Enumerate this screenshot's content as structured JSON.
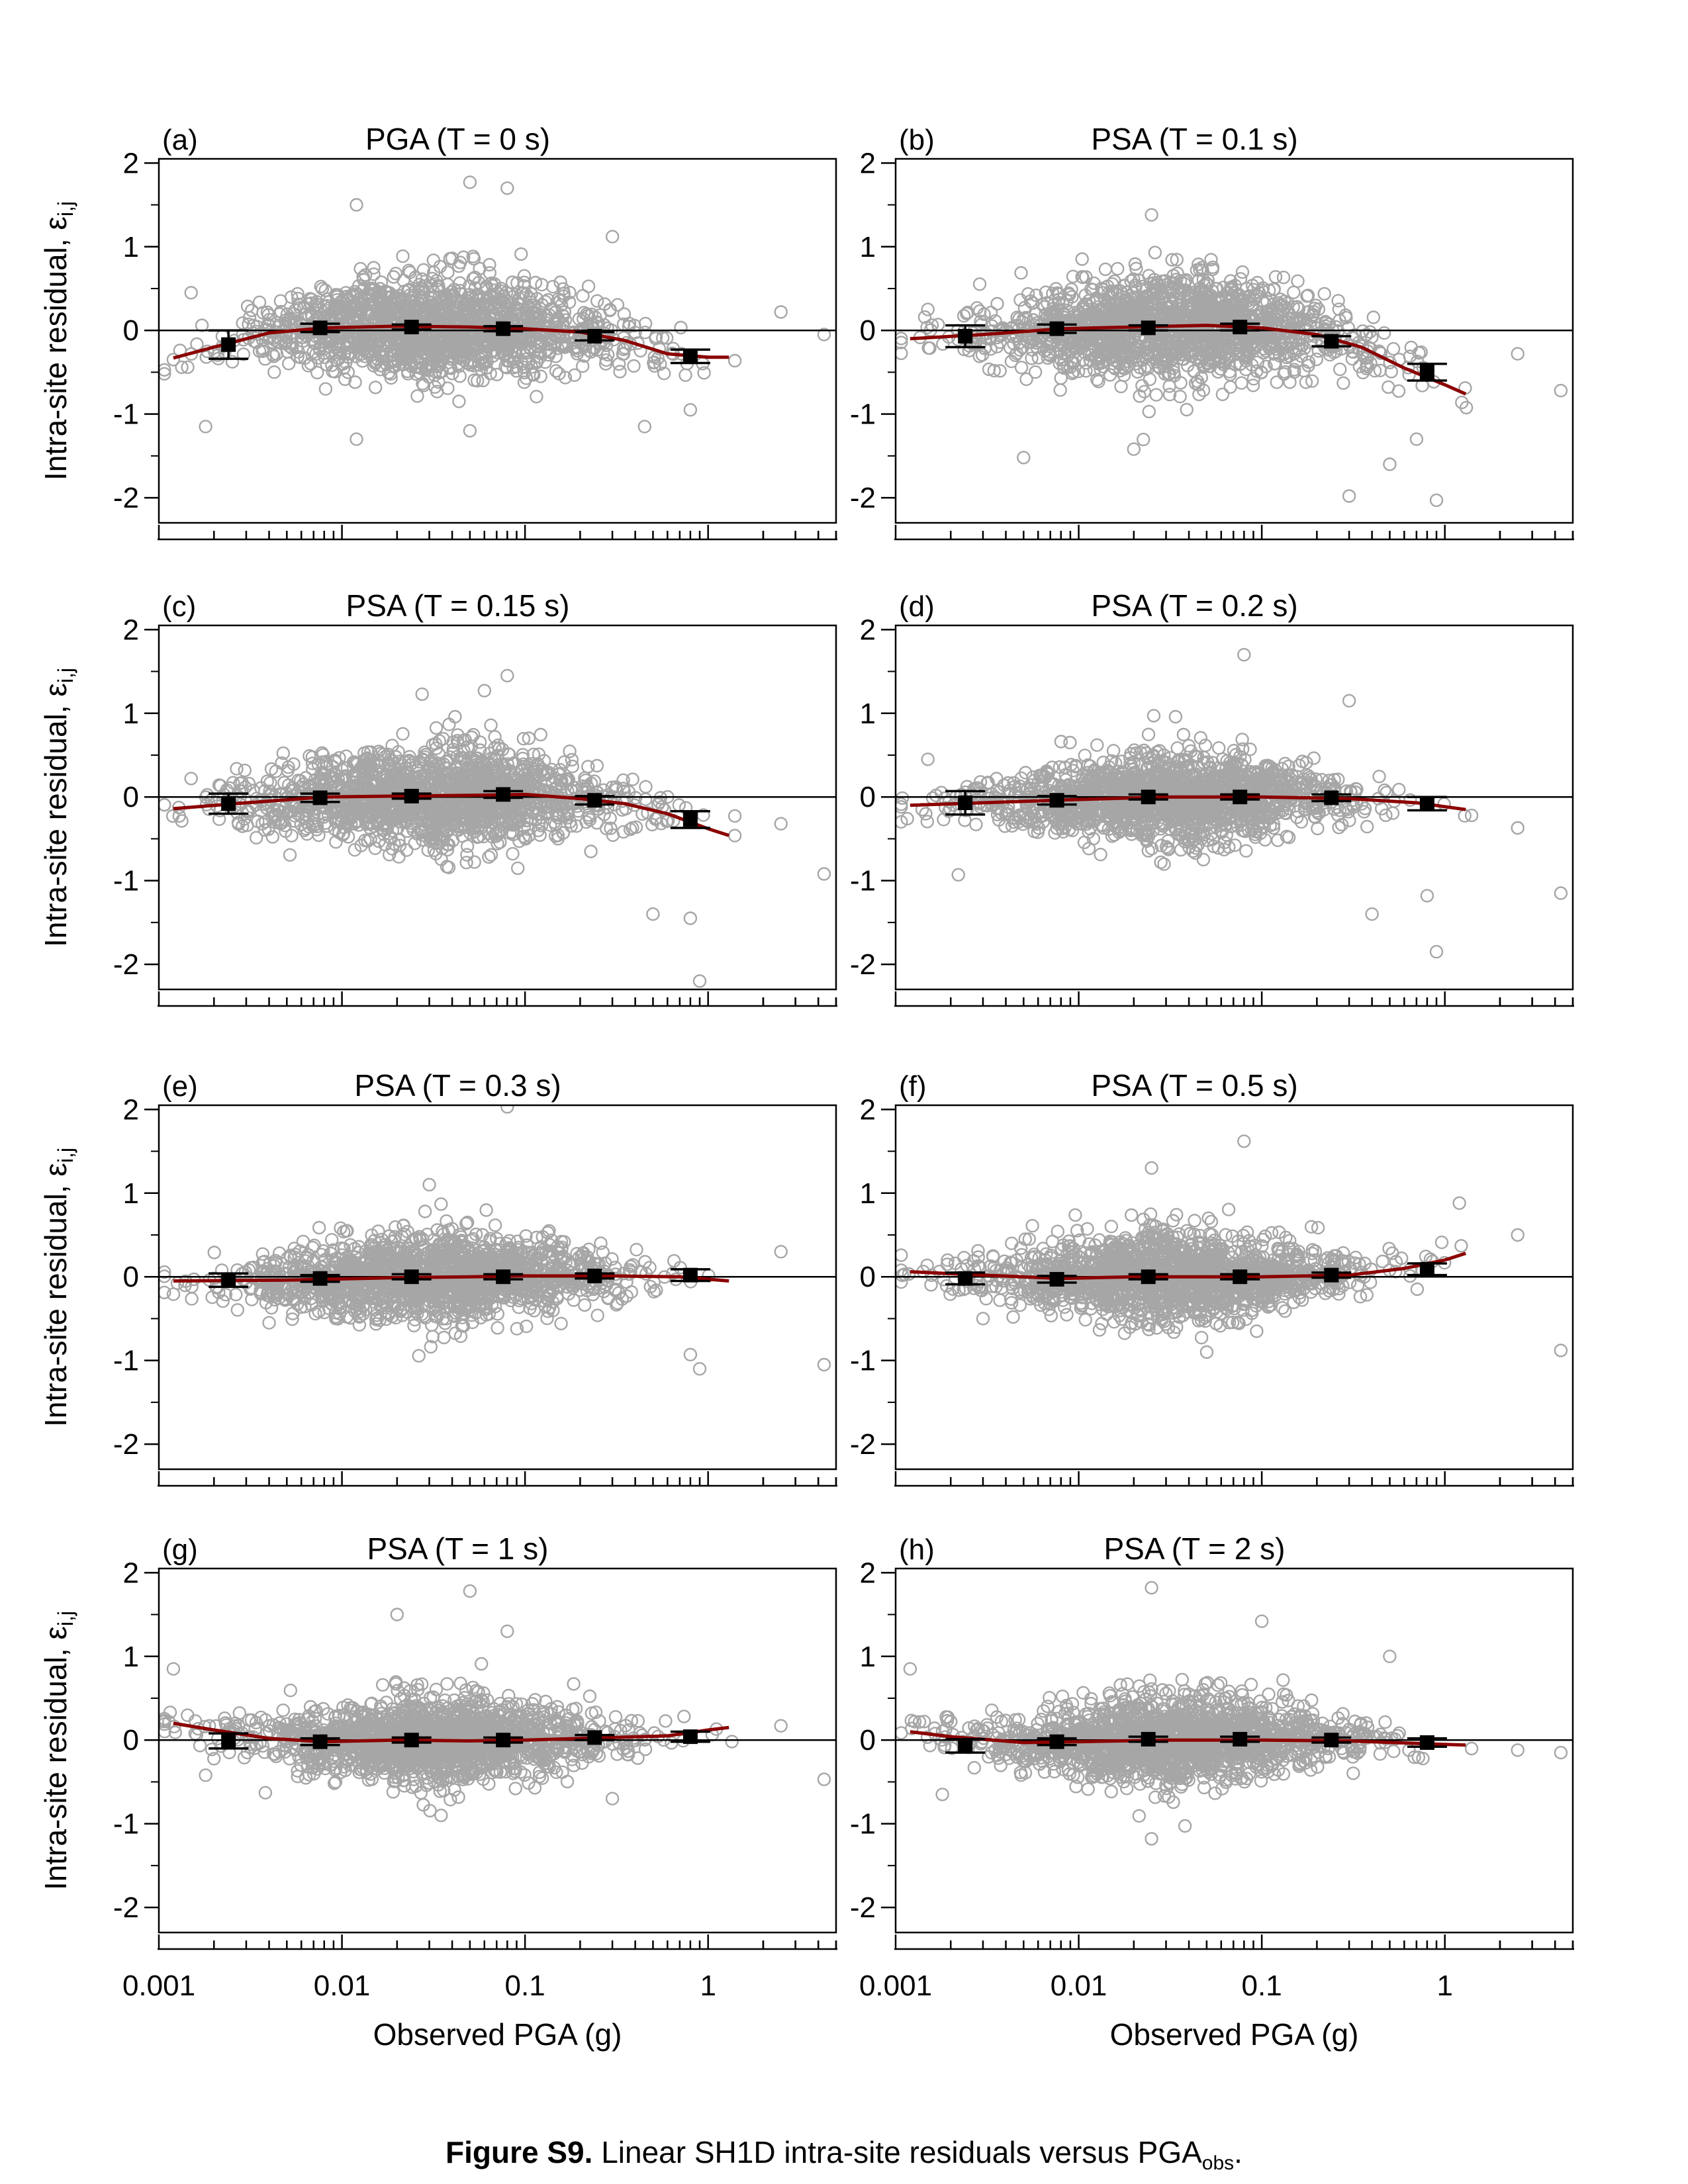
{
  "figure": {
    "caption_label": "Figure S9.",
    "caption_text": "Linear SH1D intra-site residuals versus PGA",
    "caption_sub": "obs",
    "caption_end": ".",
    "x_axis_label": "Observed PGA (g)",
    "y_axis_label": "Intra-site residual, ε",
    "y_axis_label_sub": "i,j"
  },
  "colors": {
    "scatter": "#a6a6a6",
    "trend": "#8b0000",
    "bins": "#000000"
  },
  "chart_data": [
    {
      "type": "scatter",
      "panel": "(a)",
      "title": "PGA (T = 0 s)",
      "xscale": "log",
      "xlim": [
        0.001,
        5
      ],
      "ylim": [
        -2.3,
        2.05
      ],
      "xticks": [
        "0.001",
        "0.01",
        "0.1",
        "1"
      ],
      "yticks": [
        "2",
        "1",
        "0",
        "-1",
        "-2"
      ],
      "ylabel": "Intra-site residual, εi,j",
      "xlabel": "",
      "trend": [
        [
          0.0012,
          -0.33
        ],
        [
          0.002,
          -0.2
        ],
        [
          0.004,
          -0.03
        ],
        [
          0.008,
          0.03
        ],
        [
          0.02,
          0.05
        ],
        [
          0.05,
          0.04
        ],
        [
          0.1,
          0.02
        ],
        [
          0.2,
          -0.02
        ],
        [
          0.35,
          -0.12
        ],
        [
          0.6,
          -0.28
        ],
        [
          1.0,
          -0.32
        ],
        [
          1.3,
          -0.32
        ]
      ],
      "bins": [
        {
          "x": 0.0024,
          "y": -0.17,
          "err": 0.17
        },
        {
          "x": 0.0076,
          "y": 0.03,
          "err": 0.05
        },
        {
          "x": 0.024,
          "y": 0.04,
          "err": 0.03
        },
        {
          "x": 0.076,
          "y": 0.02,
          "err": 0.03
        },
        {
          "x": 0.24,
          "y": -0.07,
          "err": 0.05
        },
        {
          "x": 0.8,
          "y": -0.31,
          "err": 0.08
        }
      ],
      "cloud": {
        "center_log10x": -1.5,
        "spread_log10x": 0.5,
        "y_sd": 0.33,
        "n": 1600
      },
      "outliers": [
        [
          0.0012,
          -0.35
        ],
        [
          0.0015,
          0.45
        ],
        [
          0.0018,
          -1.15
        ],
        [
          0.012,
          1.5
        ],
        [
          0.05,
          1.77
        ],
        [
          0.08,
          1.7
        ],
        [
          0.012,
          -1.3
        ],
        [
          0.05,
          -1.2
        ],
        [
          0.3,
          1.12
        ],
        [
          0.45,
          -1.15
        ],
        [
          0.8,
          -0.95
        ],
        [
          2.5,
          0.22
        ],
        [
          4.3,
          -0.05
        ]
      ]
    },
    {
      "type": "scatter",
      "panel": "(b)",
      "title": "PSA (T = 0.1 s)",
      "xscale": "log",
      "xlim": [
        0.001,
        5
      ],
      "ylim": [
        -2.3,
        2.05
      ],
      "xticks": [
        "0.001",
        "0.01",
        "0.1",
        "1"
      ],
      "yticks": [
        "2",
        "1",
        "0",
        "-1",
        "-2"
      ],
      "ylabel": "",
      "xlabel": "",
      "trend": [
        [
          0.0012,
          -0.1
        ],
        [
          0.003,
          -0.05
        ],
        [
          0.008,
          0.02
        ],
        [
          0.02,
          0.04
        ],
        [
          0.05,
          0.06
        ],
        [
          0.1,
          0.03
        ],
        [
          0.2,
          -0.05
        ],
        [
          0.35,
          -0.2
        ],
        [
          0.6,
          -0.45
        ],
        [
          1.0,
          -0.65
        ],
        [
          1.3,
          -0.76
        ]
      ],
      "bins": [
        {
          "x": 0.0024,
          "y": -0.07,
          "err": 0.13
        },
        {
          "x": 0.0076,
          "y": 0.02,
          "err": 0.05
        },
        {
          "x": 0.024,
          "y": 0.03,
          "err": 0.03
        },
        {
          "x": 0.076,
          "y": 0.04,
          "err": 0.04
        },
        {
          "x": 0.24,
          "y": -0.13,
          "err": 0.06
        },
        {
          "x": 0.8,
          "y": -0.5,
          "err": 0.1
        }
      ],
      "cloud": {
        "center_log10x": -1.5,
        "spread_log10x": 0.5,
        "y_sd": 0.35,
        "n": 1600
      },
      "outliers": [
        [
          0.0015,
          0.25
        ],
        [
          0.025,
          1.38
        ],
        [
          0.005,
          -1.52
        ],
        [
          0.02,
          -1.42
        ],
        [
          0.3,
          -1.98
        ],
        [
          0.5,
          -1.6
        ],
        [
          0.9,
          -2.03
        ],
        [
          0.7,
          -1.3
        ],
        [
          2.5,
          -0.28
        ],
        [
          4.3,
          -0.72
        ]
      ]
    },
    {
      "type": "scatter",
      "panel": "(c)",
      "title": "PSA (T = 0.15 s)",
      "xscale": "log",
      "xlim": [
        0.001,
        5
      ],
      "ylim": [
        -2.3,
        2.05
      ],
      "xticks": [
        "0.001",
        "0.01",
        "0.1",
        "1"
      ],
      "yticks": [
        "2",
        "1",
        "0",
        "-1",
        "-2"
      ],
      "ylabel": "Intra-site residual, εi,j",
      "xlabel": "",
      "trend": [
        [
          0.0012,
          -0.14
        ],
        [
          0.003,
          -0.07
        ],
        [
          0.008,
          0.0
        ],
        [
          0.02,
          0.01
        ],
        [
          0.05,
          0.02
        ],
        [
          0.1,
          0.03
        ],
        [
          0.2,
          -0.02
        ],
        [
          0.35,
          -0.08
        ],
        [
          0.6,
          -0.2
        ],
        [
          1.0,
          -0.38
        ],
        [
          1.3,
          -0.46
        ]
      ],
      "bins": [
        {
          "x": 0.0024,
          "y": -0.08,
          "err": 0.12
        },
        {
          "x": 0.0076,
          "y": -0.01,
          "err": 0.05
        },
        {
          "x": 0.024,
          "y": 0.01,
          "err": 0.03
        },
        {
          "x": 0.076,
          "y": 0.03,
          "err": 0.04
        },
        {
          "x": 0.24,
          "y": -0.04,
          "err": 0.05
        },
        {
          "x": 0.8,
          "y": -0.27,
          "err": 0.1
        }
      ],
      "cloud": {
        "center_log10x": -1.5,
        "spread_log10x": 0.5,
        "y_sd": 0.33,
        "n": 1600
      },
      "outliers": [
        [
          0.0015,
          0.22
        ],
        [
          0.06,
          1.27
        ],
        [
          0.08,
          1.45
        ],
        [
          0.5,
          -1.4
        ],
        [
          0.9,
          -2.2
        ],
        [
          0.8,
          -1.45
        ],
        [
          2.5,
          -0.32
        ],
        [
          4.3,
          -0.92
        ]
      ]
    },
    {
      "type": "scatter",
      "panel": "(d)",
      "title": "PSA (T = 0.2 s)",
      "xscale": "log",
      "xlim": [
        0.001,
        5
      ],
      "ylim": [
        -2.3,
        2.05
      ],
      "xticks": [
        "0.001",
        "0.01",
        "0.1",
        "1"
      ],
      "yticks": [
        "2",
        "1",
        "0",
        "-1",
        "-2"
      ],
      "ylabel": "",
      "xlabel": "",
      "trend": [
        [
          0.0012,
          -0.1
        ],
        [
          0.004,
          -0.06
        ],
        [
          0.01,
          -0.03
        ],
        [
          0.03,
          0.0
        ],
        [
          0.1,
          0.0
        ],
        [
          0.3,
          -0.02
        ],
        [
          0.7,
          -0.07
        ],
        [
          1.3,
          -0.15
        ]
      ],
      "bins": [
        {
          "x": 0.0024,
          "y": -0.07,
          "err": 0.14
        },
        {
          "x": 0.0076,
          "y": -0.04,
          "err": 0.05
        },
        {
          "x": 0.024,
          "y": 0.0,
          "err": 0.03
        },
        {
          "x": 0.076,
          "y": 0.0,
          "err": 0.03
        },
        {
          "x": 0.24,
          "y": -0.01,
          "err": 0.04
        },
        {
          "x": 0.8,
          "y": -0.08,
          "err": 0.08
        }
      ],
      "cloud": {
        "center_log10x": -1.5,
        "spread_log10x": 0.5,
        "y_sd": 0.3,
        "n": 1600
      },
      "outliers": [
        [
          0.0015,
          0.45
        ],
        [
          0.0022,
          -0.93
        ],
        [
          0.08,
          1.7
        ],
        [
          0.3,
          1.15
        ],
        [
          0.4,
          -1.4
        ],
        [
          0.9,
          -1.85
        ],
        [
          0.8,
          -1.18
        ],
        [
          2.5,
          -0.37
        ],
        [
          4.3,
          -1.15
        ]
      ]
    },
    {
      "type": "scatter",
      "panel": "(e)",
      "title": "PSA (T = 0.3 s)",
      "xscale": "log",
      "xlim": [
        0.001,
        5
      ],
      "ylim": [
        -2.3,
        2.05
      ],
      "xticks": [
        "0.001",
        "0.01",
        "0.1",
        "1"
      ],
      "yticks": [
        "2",
        "1",
        "0",
        "-1",
        "-2"
      ],
      "ylabel": "Intra-site residual, εi,j",
      "xlabel": "",
      "trend": [
        [
          0.0012,
          -0.05
        ],
        [
          0.005,
          -0.04
        ],
        [
          0.02,
          -0.01
        ],
        [
          0.05,
          0.0
        ],
        [
          0.1,
          0.01
        ],
        [
          0.3,
          0.01
        ],
        [
          0.7,
          0.0
        ],
        [
          1.3,
          -0.05
        ]
      ],
      "bins": [
        {
          "x": 0.0024,
          "y": -0.04,
          "err": 0.08
        },
        {
          "x": 0.0076,
          "y": -0.02,
          "err": 0.04
        },
        {
          "x": 0.024,
          "y": 0.0,
          "err": 0.03
        },
        {
          "x": 0.076,
          "y": 0.0,
          "err": 0.03
        },
        {
          "x": 0.24,
          "y": 0.01,
          "err": 0.03
        },
        {
          "x": 0.8,
          "y": 0.02,
          "err": 0.07
        }
      ],
      "cloud": {
        "center_log10x": -1.5,
        "spread_log10x": 0.5,
        "y_sd": 0.28,
        "n": 1600
      },
      "outliers": [
        [
          0.004,
          -0.55
        ],
        [
          0.03,
          1.1
        ],
        [
          0.08,
          2.03
        ],
        [
          0.9,
          -1.1
        ],
        [
          0.8,
          -0.93
        ],
        [
          2.5,
          0.3
        ],
        [
          4.3,
          -1.05
        ]
      ]
    },
    {
      "type": "scatter",
      "panel": "(f)",
      "title": "PSA (T = 0.5 s)",
      "xscale": "log",
      "xlim": [
        0.001,
        5
      ],
      "ylim": [
        -2.3,
        2.05
      ],
      "xticks": [
        "0.001",
        "0.01",
        "0.1",
        "1"
      ],
      "yticks": [
        "2",
        "1",
        "0",
        "-1",
        "-2"
      ],
      "ylabel": "",
      "xlabel": "",
      "trend": [
        [
          0.0012,
          0.06
        ],
        [
          0.003,
          0.02
        ],
        [
          0.008,
          -0.02
        ],
        [
          0.02,
          0.0
        ],
        [
          0.05,
          0.0
        ],
        [
          0.1,
          0.0
        ],
        [
          0.3,
          0.02
        ],
        [
          0.6,
          0.1
        ],
        [
          1.0,
          0.2
        ],
        [
          1.3,
          0.28
        ]
      ],
      "bins": [
        {
          "x": 0.0024,
          "y": -0.02,
          "err": 0.07
        },
        {
          "x": 0.0076,
          "y": -0.03,
          "err": 0.04
        },
        {
          "x": 0.024,
          "y": 0.0,
          "err": 0.03
        },
        {
          "x": 0.076,
          "y": 0.0,
          "err": 0.03
        },
        {
          "x": 0.24,
          "y": 0.02,
          "err": 0.03
        },
        {
          "x": 0.8,
          "y": 0.09,
          "err": 0.07
        }
      ],
      "cloud": {
        "center_log10x": -1.5,
        "spread_log10x": 0.5,
        "y_sd": 0.28,
        "n": 1600
      },
      "outliers": [
        [
          0.025,
          1.3
        ],
        [
          0.08,
          1.62
        ],
        [
          0.003,
          -0.5
        ],
        [
          0.05,
          -0.9
        ],
        [
          1.2,
          0.88
        ],
        [
          2.5,
          0.5
        ],
        [
          4.3,
          -0.88
        ]
      ]
    },
    {
      "type": "scatter",
      "panel": "(g)",
      "title": "PSA (T = 1 s)",
      "xscale": "log",
      "xlim": [
        0.001,
        5
      ],
      "ylim": [
        -2.3,
        2.05
      ],
      "xticks": [
        "0.001",
        "0.01",
        "0.1",
        "1"
      ],
      "yticks": [
        "2",
        "1",
        "0",
        "-1",
        "-2"
      ],
      "ylabel": "Intra-site residual, εi,j",
      "xlabel": "Observed PGA (g)",
      "trend": [
        [
          0.0012,
          0.2
        ],
        [
          0.002,
          0.12
        ],
        [
          0.004,
          0.02
        ],
        [
          0.008,
          -0.02
        ],
        [
          0.02,
          0.0
        ],
        [
          0.05,
          -0.01
        ],
        [
          0.1,
          0.0
        ],
        [
          0.3,
          0.03
        ],
        [
          0.6,
          0.05
        ],
        [
          1.0,
          0.12
        ],
        [
          1.3,
          0.15
        ]
      ],
      "bins": [
        {
          "x": 0.0024,
          "y": -0.01,
          "err": 0.09
        },
        {
          "x": 0.0076,
          "y": -0.02,
          "err": 0.04
        },
        {
          "x": 0.024,
          "y": 0.0,
          "err": 0.03
        },
        {
          "x": 0.076,
          "y": 0.0,
          "err": 0.03
        },
        {
          "x": 0.24,
          "y": 0.03,
          "err": 0.03
        },
        {
          "x": 0.8,
          "y": 0.04,
          "err": 0.06
        }
      ],
      "cloud": {
        "center_log10x": -1.5,
        "spread_log10x": 0.5,
        "y_sd": 0.28,
        "n": 1600
      },
      "outliers": [
        [
          0.0012,
          0.85
        ],
        [
          0.0018,
          -0.42
        ],
        [
          0.02,
          1.5
        ],
        [
          0.05,
          1.78
        ],
        [
          0.08,
          1.3
        ],
        [
          0.3,
          -0.7
        ],
        [
          2.5,
          0.17
        ],
        [
          4.3,
          -0.47
        ]
      ]
    },
    {
      "type": "scatter",
      "panel": "(h)",
      "title": "PSA (T = 2 s)",
      "xscale": "log",
      "xlim": [
        0.001,
        5
      ],
      "ylim": [
        -2.3,
        2.05
      ],
      "xticks": [
        "0.001",
        "0.01",
        "0.1",
        "1"
      ],
      "yticks": [
        "2",
        "1",
        "0",
        "-1",
        "-2"
      ],
      "ylabel": "",
      "xlabel": "Observed PGA (g)",
      "trend": [
        [
          0.0012,
          0.1
        ],
        [
          0.002,
          0.04
        ],
        [
          0.005,
          -0.03
        ],
        [
          0.01,
          -0.02
        ],
        [
          0.03,
          0.0
        ],
        [
          0.1,
          0.0
        ],
        [
          0.3,
          -0.01
        ],
        [
          0.7,
          -0.04
        ],
        [
          1.3,
          -0.06
        ]
      ],
      "bins": [
        {
          "x": 0.0024,
          "y": -0.07,
          "err": 0.08
        },
        {
          "x": 0.0076,
          "y": -0.02,
          "err": 0.04
        },
        {
          "x": 0.024,
          "y": 0.01,
          "err": 0.03
        },
        {
          "x": 0.076,
          "y": 0.01,
          "err": 0.03
        },
        {
          "x": 0.24,
          "y": 0.0,
          "err": 0.03
        },
        {
          "x": 0.8,
          "y": -0.03,
          "err": 0.05
        }
      ],
      "cloud": {
        "center_log10x": -1.5,
        "spread_log10x": 0.5,
        "y_sd": 0.28,
        "n": 1600
      },
      "outliers": [
        [
          0.0012,
          0.85
        ],
        [
          0.0018,
          -0.65
        ],
        [
          0.025,
          1.82
        ],
        [
          0.025,
          -1.18
        ],
        [
          0.1,
          1.42
        ],
        [
          0.5,
          1.0
        ],
        [
          2.5,
          -0.12
        ],
        [
          4.3,
          -0.15
        ]
      ]
    }
  ]
}
